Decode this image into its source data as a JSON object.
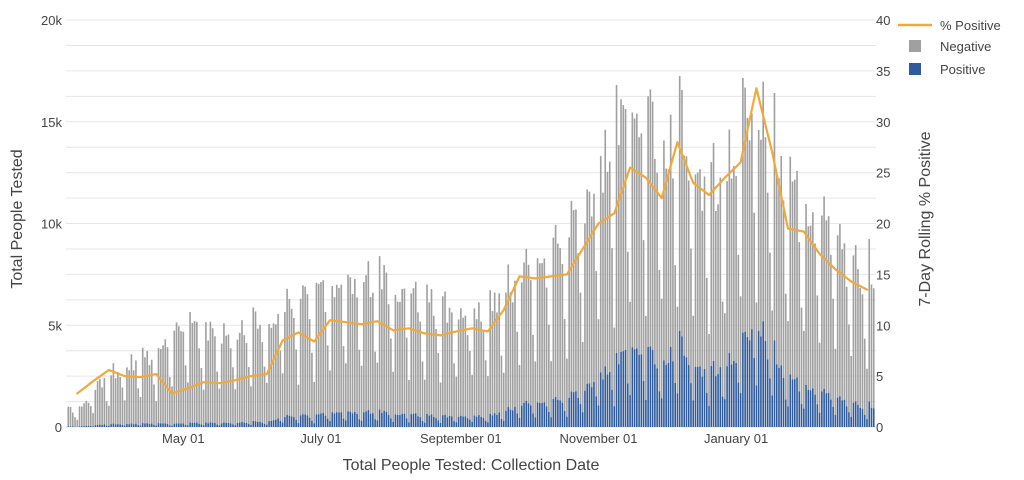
{
  "chart_data": {
    "type": "bar+line",
    "xlabel": "Total People Tested: Collection Date",
    "ylabel_left": "Total People Tested",
    "ylabel_right": "7-Day Rolling % Positive",
    "ylim_left": [
      0,
      20000
    ],
    "ylim_right": [
      0,
      40
    ],
    "y_ticks_left": [
      "0",
      "5k",
      "10k",
      "15k",
      "20k"
    ],
    "y_ticks_right": [
      "0",
      "5",
      "10",
      "15",
      "20",
      "25",
      "30",
      "35",
      "40"
    ],
    "x_ticks": [
      "May 01",
      "July 01",
      "September 01",
      "November 01",
      "January 01"
    ],
    "grid": true,
    "legend_position": "top-right",
    "colors": {
      "negative": "#a0a0a0",
      "positive": "#2f5b9c",
      "pct_positive": "#f2a93b"
    },
    "series": [
      {
        "name": "% Positive",
        "kind": "line",
        "axis": "right",
        "points": [
          [
            "Mar 15",
            3.3
          ],
          [
            "Mar 22",
            4.5
          ],
          [
            "Mar 29",
            5.6
          ],
          [
            "Apr 05",
            5.0
          ],
          [
            "Apr 12",
            4.9
          ],
          [
            "Apr 19",
            5.2
          ],
          [
            "Apr 26",
            3.3
          ],
          [
            "May 03",
            3.8
          ],
          [
            "May 10",
            4.4
          ],
          [
            "May 17",
            4.3
          ],
          [
            "May 24",
            4.6
          ],
          [
            "May 31",
            5.0
          ],
          [
            "Jun 07",
            5.2
          ],
          [
            "Jun 14",
            8.5
          ],
          [
            "Jun 21",
            9.3
          ],
          [
            "Jun 28",
            8.4
          ],
          [
            "Jul 05",
            10.5
          ],
          [
            "Jul 12",
            10.3
          ],
          [
            "Jul 19",
            10.1
          ],
          [
            "Jul 26",
            10.4
          ],
          [
            "Aug 02",
            9.5
          ],
          [
            "Aug 09",
            9.7
          ],
          [
            "Aug 16",
            9.2
          ],
          [
            "Aug 23",
            9.0
          ],
          [
            "Aug 30",
            9.4
          ],
          [
            "Sep 06",
            9.7
          ],
          [
            "Sep 13",
            9.4
          ],
          [
            "Sep 20",
            11.5
          ],
          [
            "Sep 27",
            14.8
          ],
          [
            "Oct 04",
            14.6
          ],
          [
            "Oct 11",
            14.8
          ],
          [
            "Oct 18",
            15.0
          ],
          [
            "Oct 25",
            17.5
          ],
          [
            "Nov 01",
            20.0
          ],
          [
            "Nov 08",
            21.0
          ],
          [
            "Nov 15",
            25.5
          ],
          [
            "Nov 22",
            24.5
          ],
          [
            "Nov 29",
            22.5
          ],
          [
            "Dec 06",
            28.0
          ],
          [
            "Dec 13",
            24.0
          ],
          [
            "Dec 20",
            22.8
          ],
          [
            "Dec 27",
            24.5
          ],
          [
            "Jan 03",
            26.0
          ],
          [
            "Jan 10",
            33.3
          ],
          [
            "Jan 17",
            27.0
          ],
          [
            "Jan 24",
            19.5
          ],
          [
            "Jan 31",
            19.2
          ],
          [
            "Feb 07",
            17.0
          ],
          [
            "Feb 14",
            15.5
          ],
          [
            "Feb 21",
            14.3
          ],
          [
            "Feb 28",
            13.5
          ]
        ]
      },
      {
        "name": "Negative",
        "kind": "bar",
        "axis": "left",
        "weekly_avg_total": [
          [
            "Mar 15",
            800
          ],
          [
            "Mar 22",
            1500
          ],
          [
            "Mar 29",
            2300
          ],
          [
            "Apr 05",
            2700
          ],
          [
            "Apr 12",
            3000
          ],
          [
            "Apr 19",
            2900
          ],
          [
            "Apr 26",
            4200
          ],
          [
            "May 03",
            4400
          ],
          [
            "May 10",
            4300
          ],
          [
            "May 17",
            4000
          ],
          [
            "May 24",
            4000
          ],
          [
            "May 31",
            4500
          ],
          [
            "Jun 07",
            4500
          ],
          [
            "Jun 14",
            5200
          ],
          [
            "Jun 21",
            5300
          ],
          [
            "Jun 28",
            5600
          ],
          [
            "Jul 05",
            6300
          ],
          [
            "Jul 12",
            6400
          ],
          [
            "Jul 19",
            6300
          ],
          [
            "Jul 26",
            6600
          ],
          [
            "Aug 02",
            6200
          ],
          [
            "Aug 09",
            5900
          ],
          [
            "Aug 16",
            5400
          ],
          [
            "Aug 23",
            5300
          ],
          [
            "Aug 30",
            5100
          ],
          [
            "Sep 06",
            5100
          ],
          [
            "Sep 13",
            5400
          ],
          [
            "Sep 20",
            6000
          ],
          [
            "Sep 27",
            6800
          ],
          [
            "Oct 04",
            7200
          ],
          [
            "Oct 11",
            7600
          ],
          [
            "Oct 18",
            8000
          ],
          [
            "Oct 25",
            9500
          ],
          [
            "Nov 01",
            11000
          ],
          [
            "Nov 08",
            12500
          ],
          [
            "Nov 15",
            14500
          ],
          [
            "Nov 22",
            14000
          ],
          [
            "Nov 29",
            12500
          ],
          [
            "Dec 06",
            13000
          ],
          [
            "Dec 13",
            12000
          ],
          [
            "Dec 20",
            11000
          ],
          [
            "Dec 27",
            11000
          ],
          [
            "Jan 03",
            13000
          ],
          [
            "Jan 10",
            14500
          ],
          [
            "Jan 17",
            12500
          ],
          [
            "Jan 24",
            11000
          ],
          [
            "Jan 31",
            10000
          ],
          [
            "Feb 07",
            9500
          ],
          [
            "Feb 14",
            8500
          ],
          [
            "Feb 21",
            7500
          ],
          [
            "Feb 28",
            7000
          ]
        ]
      },
      {
        "name": "Positive",
        "kind": "bar",
        "axis": "left"
      }
    ]
  }
}
